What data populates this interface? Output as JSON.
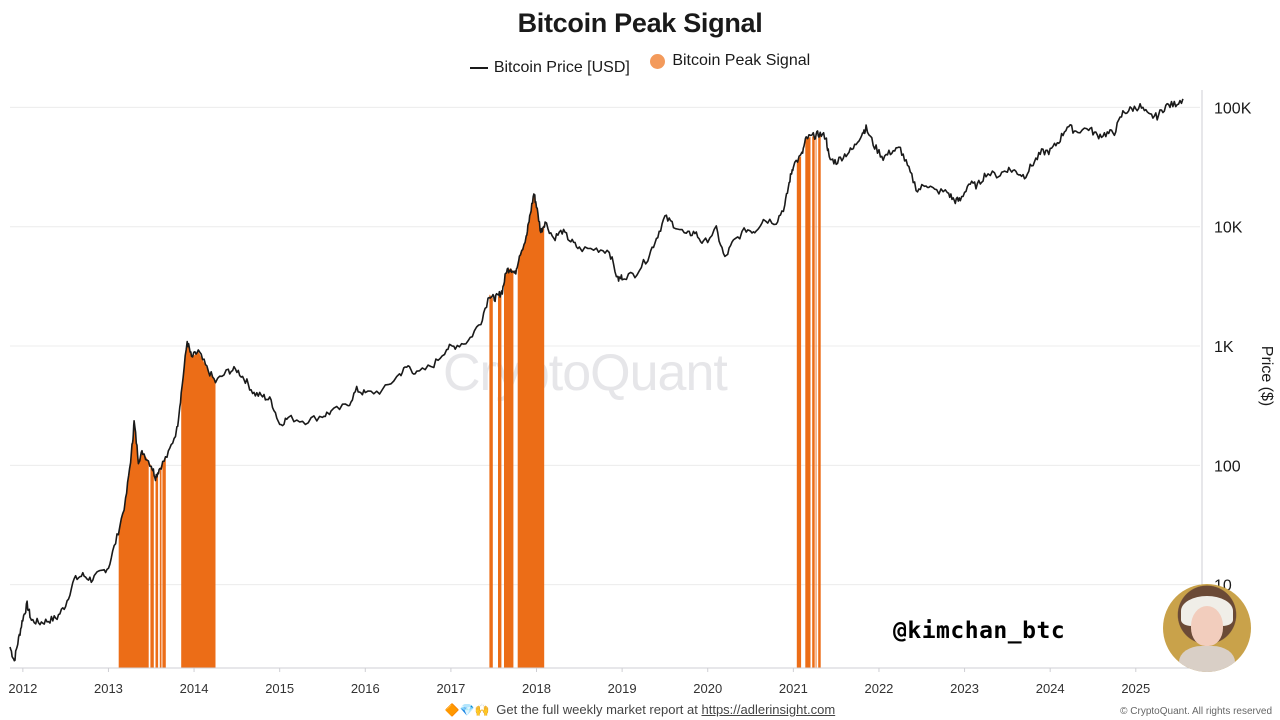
{
  "chart_data": {
    "type": "line",
    "title": "Bitcoin Peak Signal",
    "xlabel": "",
    "ylabel": "Price ($)",
    "y_scale": "log",
    "ylim": [
      2,
      140000
    ],
    "y_ticks": [
      {
        "value": 10,
        "label": "10"
      },
      {
        "value": 100,
        "label": "100"
      },
      {
        "value": 1000,
        "label": "1K"
      },
      {
        "value": 10000,
        "label": "10K"
      },
      {
        "value": 100000,
        "label": "100K"
      }
    ],
    "x_ticks": [
      "2012",
      "2013",
      "2014",
      "2015",
      "2016",
      "2017",
      "2018",
      "2019",
      "2020",
      "2021",
      "2022",
      "2023",
      "2024",
      "2025"
    ],
    "xlim": [
      2011.85,
      2025.75
    ],
    "legend_position": "top-center",
    "grid": "horizontal",
    "series": [
      {
        "name": "Bitcoin Price [USD]",
        "color": "#1a1a1a",
        "points": [
          [
            2011.85,
            3.0
          ],
          [
            2011.9,
            2.3
          ],
          [
            2011.95,
            3.5
          ],
          [
            2012.0,
            5.2
          ],
          [
            2012.05,
            6.8
          ],
          [
            2012.1,
            5.0
          ],
          [
            2012.2,
            4.8
          ],
          [
            2012.3,
            5.0
          ],
          [
            2012.4,
            5.3
          ],
          [
            2012.5,
            6.8
          ],
          [
            2012.6,
            11
          ],
          [
            2012.7,
            12
          ],
          [
            2012.8,
            11
          ],
          [
            2012.9,
            12.5
          ],
          [
            2013.0,
            14
          ],
          [
            2013.1,
            25
          ],
          [
            2013.2,
            50
          ],
          [
            2013.27,
            130
          ],
          [
            2013.3,
            230
          ],
          [
            2013.35,
            110
          ],
          [
            2013.4,
            130
          ],
          [
            2013.5,
            100
          ],
          [
            2013.55,
            80
          ],
          [
            2013.6,
            95
          ],
          [
            2013.7,
            125
          ],
          [
            2013.8,
            200
          ],
          [
            2013.85,
            400
          ],
          [
            2013.92,
            1100
          ],
          [
            2013.97,
            800
          ],
          [
            2014.05,
            900
          ],
          [
            2014.15,
            650
          ],
          [
            2014.25,
            500
          ],
          [
            2014.4,
            620
          ],
          [
            2014.5,
            630
          ],
          [
            2014.6,
            520
          ],
          [
            2014.7,
            400
          ],
          [
            2014.8,
            380
          ],
          [
            2014.9,
            350
          ],
          [
            2015.0,
            220
          ],
          [
            2015.1,
            250
          ],
          [
            2015.3,
            235
          ],
          [
            2015.5,
            260
          ],
          [
            2015.6,
            280
          ],
          [
            2015.8,
            320
          ],
          [
            2015.9,
            430
          ],
          [
            2016.0,
            400
          ],
          [
            2016.2,
            420
          ],
          [
            2016.4,
            580
          ],
          [
            2016.5,
            680
          ],
          [
            2016.6,
            580
          ],
          [
            2016.8,
            700
          ],
          [
            2016.95,
            950
          ],
          [
            2017.05,
            1000
          ],
          [
            2017.2,
            1100
          ],
          [
            2017.35,
            1600
          ],
          [
            2017.45,
            2700
          ],
          [
            2017.5,
            2500
          ],
          [
            2017.55,
            2600
          ],
          [
            2017.6,
            2900
          ],
          [
            2017.65,
            4300
          ],
          [
            2017.7,
            4500
          ],
          [
            2017.75,
            4000
          ],
          [
            2017.8,
            5800
          ],
          [
            2017.88,
            8000
          ],
          [
            2017.92,
            12000
          ],
          [
            2017.97,
            19000
          ],
          [
            2018.0,
            15000
          ],
          [
            2018.05,
            9000
          ],
          [
            2018.1,
            11000
          ],
          [
            2018.2,
            8000
          ],
          [
            2018.3,
            9200
          ],
          [
            2018.4,
            7600
          ],
          [
            2018.5,
            6500
          ],
          [
            2018.7,
            6500
          ],
          [
            2018.85,
            6300
          ],
          [
            2018.95,
            3600
          ],
          [
            2019.0,
            3800
          ],
          [
            2019.15,
            4000
          ],
          [
            2019.3,
            5500
          ],
          [
            2019.4,
            8000
          ],
          [
            2019.5,
            12000
          ],
          [
            2019.6,
            10500
          ],
          [
            2019.75,
            8500
          ],
          [
            2019.85,
            9000
          ],
          [
            2019.95,
            7200
          ],
          [
            2020.1,
            9500
          ],
          [
            2020.2,
            5400
          ],
          [
            2020.3,
            7500
          ],
          [
            2020.45,
            9500
          ],
          [
            2020.55,
            9200
          ],
          [
            2020.65,
            11500
          ],
          [
            2020.8,
            11000
          ],
          [
            2020.9,
            15000
          ],
          [
            2020.96,
            25000
          ],
          [
            2021.0,
            33000
          ],
          [
            2021.1,
            40000
          ],
          [
            2021.15,
            55000
          ],
          [
            2021.25,
            58000
          ],
          [
            2021.3,
            60000
          ],
          [
            2021.38,
            57000
          ],
          [
            2021.42,
            37000
          ],
          [
            2021.5,
            35000
          ],
          [
            2021.6,
            40000
          ],
          [
            2021.7,
            45000
          ],
          [
            2021.8,
            61000
          ],
          [
            2021.85,
            67000
          ],
          [
            2021.95,
            47000
          ],
          [
            2022.05,
            38000
          ],
          [
            2022.15,
            43000
          ],
          [
            2022.25,
            45000
          ],
          [
            2022.35,
            30000
          ],
          [
            2022.45,
            20000
          ],
          [
            2022.55,
            23000
          ],
          [
            2022.65,
            20000
          ],
          [
            2022.8,
            19500
          ],
          [
            2022.88,
            16500
          ],
          [
            2022.95,
            16700
          ],
          [
            2023.05,
            23000
          ],
          [
            2023.15,
            22000
          ],
          [
            2023.25,
            28000
          ],
          [
            2023.4,
            27000
          ],
          [
            2023.5,
            30500
          ],
          [
            2023.6,
            29000
          ],
          [
            2023.7,
            26500
          ],
          [
            2023.8,
            34000
          ],
          [
            2023.9,
            42000
          ],
          [
            2024.0,
            43000
          ],
          [
            2024.1,
            52000
          ],
          [
            2024.2,
            70000
          ],
          [
            2024.3,
            63000
          ],
          [
            2024.45,
            67000
          ],
          [
            2024.55,
            58000
          ],
          [
            2024.65,
            60000
          ],
          [
            2024.75,
            62000
          ],
          [
            2024.85,
            90000
          ],
          [
            2024.95,
            97000
          ],
          [
            2025.05,
            102000
          ],
          [
            2025.15,
            85000
          ],
          [
            2025.25,
            84000
          ],
          [
            2025.35,
            103000
          ],
          [
            2025.45,
            106000
          ],
          [
            2025.55,
            118000
          ]
        ]
      },
      {
        "name": "Bitcoin Peak Signal",
        "color": "#f39a5b",
        "bar_color": "#ec6d17",
        "signal_ranges": [
          [
            2013.12,
            2013.47
          ],
          [
            2013.49,
            2013.53
          ],
          [
            2013.55,
            2013.58
          ],
          [
            2013.6,
            2013.62
          ],
          [
            2013.63,
            2013.67
          ],
          [
            2013.85,
            2014.25
          ],
          [
            2017.45,
            2017.49
          ],
          [
            2017.55,
            2017.59
          ],
          [
            2017.62,
            2017.73
          ],
          [
            2017.78,
            2018.09
          ],
          [
            2021.04,
            2021.09
          ],
          [
            2021.14,
            2021.2
          ],
          [
            2021.22,
            2021.25
          ],
          [
            2021.26,
            2021.27
          ],
          [
            2021.29,
            2021.32
          ]
        ]
      }
    ]
  },
  "watermark": "CryptoQuant",
  "handle": "@kimchan_btc",
  "footer": {
    "emojis": "🔶💎🙌",
    "text": "Get the full weekly market report at",
    "link": "https://adlerinsight.com"
  },
  "copyright": "© CryptoQuant. All rights reserved"
}
